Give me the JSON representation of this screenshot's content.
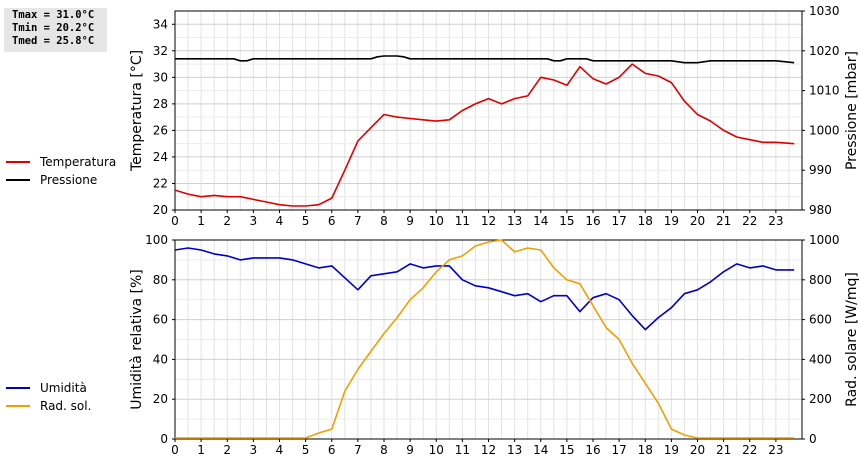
{
  "stats": {
    "tmax": "Tmax = 31.0°C",
    "tmin": "Tmin = 20.2°C",
    "tmed": "Tmed = 25.8°C"
  },
  "legend": {
    "top": [
      {
        "label": "Temperatura",
        "color": "#dd0000"
      },
      {
        "label": "Pressione",
        "color": "#000000"
      }
    ],
    "bottom": [
      {
        "label": "Umidità",
        "color": "#0000cc"
      },
      {
        "label": "Rad. sol.",
        "color": "#f0a000"
      }
    ]
  },
  "chart_data": [
    {
      "type": "line",
      "xticks": [
        "0",
        "1",
        "2",
        "3",
        "4",
        "5",
        "6",
        "7",
        "8",
        "9",
        "10",
        "11",
        "12",
        "13",
        "14",
        "15",
        "16",
        "17",
        "18",
        "19",
        "20",
        "21",
        "22",
        "23"
      ],
      "xlim": [
        0,
        24
      ],
      "ylabel": "Temperatura [°C]",
      "ylim": [
        20,
        35
      ],
      "yticks": [
        "20",
        "22",
        "24",
        "26",
        "28",
        "30",
        "32",
        "34"
      ],
      "y2label": "Pressione [mbar]",
      "y2lim": [
        980,
        1030
      ],
      "y2ticks": [
        "980",
        "990",
        "1000",
        "1010",
        "1020",
        "1030"
      ],
      "grid": true,
      "series": [
        {
          "name": "Temperatura",
          "color": "#dd0000",
          "axis": "left",
          "x": [
            0,
            0.5,
            1,
            1.5,
            2,
            2.5,
            3,
            3.5,
            4,
            4.5,
            5,
            5.5,
            6,
            6.5,
            7,
            7.5,
            8,
            8.5,
            9,
            9.5,
            10,
            10.5,
            11,
            11.5,
            12,
            12.5,
            13,
            13.5,
            14,
            14.5,
            15,
            15.5,
            16,
            16.5,
            17,
            17.5,
            18,
            18.5,
            19,
            19.5,
            20,
            20.5,
            21,
            21.5,
            22,
            22.5,
            23,
            23.7
          ],
          "values": [
            21.5,
            21.2,
            21.0,
            21.1,
            21.0,
            21.0,
            20.8,
            20.6,
            20.4,
            20.3,
            20.3,
            20.4,
            20.9,
            23.0,
            25.2,
            26.2,
            27.2,
            27.0,
            26.9,
            26.8,
            26.7,
            26.8,
            27.5,
            28.0,
            28.4,
            28.0,
            28.4,
            28.6,
            30.0,
            29.8,
            29.4,
            30.8,
            29.9,
            29.5,
            30.0,
            31.0,
            30.3,
            30.1,
            29.6,
            28.2,
            27.2,
            26.7,
            26.0,
            25.5,
            25.3,
            25.1,
            25.1,
            25.0
          ]
        },
        {
          "name": "Pressione",
          "color": "#000000",
          "axis": "right",
          "x": [
            0,
            1,
            2,
            2.25,
            2.5,
            2.75,
            3,
            4,
            5,
            6,
            7,
            7.5,
            7.75,
            8,
            8.25,
            8.5,
            8.75,
            9,
            10,
            11,
            12,
            13,
            14,
            14.25,
            14.5,
            14.75,
            15,
            15.25,
            15.5,
            15.75,
            16,
            17,
            18,
            19,
            19.5,
            20,
            20.5,
            21,
            22,
            23,
            23.7
          ],
          "values": [
            1018,
            1018,
            1018,
            1018,
            1017.5,
            1017.5,
            1018,
            1018,
            1018,
            1018,
            1018,
            1018,
            1018.5,
            1018.7,
            1018.7,
            1018.7,
            1018.5,
            1018,
            1018,
            1018,
            1018,
            1018,
            1018,
            1018,
            1017.5,
            1017.5,
            1018,
            1018,
            1018,
            1018,
            1017.5,
            1017.5,
            1017.5,
            1017.5,
            1017,
            1017,
            1017.5,
            1017.5,
            1017.5,
            1017.5,
            1017
          ]
        }
      ]
    },
    {
      "type": "line",
      "xticks": [
        "0",
        "1",
        "2",
        "3",
        "4",
        "5",
        "6",
        "7",
        "8",
        "9",
        "10",
        "11",
        "12",
        "13",
        "14",
        "15",
        "16",
        "17",
        "18",
        "19",
        "20",
        "21",
        "22",
        "23"
      ],
      "xlim": [
        0,
        24
      ],
      "ylabel": "Umidità relativa [%]",
      "ylim": [
        0,
        100
      ],
      "yticks": [
        "0",
        "20",
        "40",
        "60",
        "80",
        "100"
      ],
      "y2label": "Rad. solare [W/mq]",
      "y2lim": [
        0,
        1000
      ],
      "y2ticks": [
        "0",
        "200",
        "400",
        "600",
        "800",
        "1000"
      ],
      "grid": true,
      "series": [
        {
          "name": "Umidità",
          "color": "#0000cc",
          "axis": "left",
          "x": [
            0,
            0.5,
            1,
            1.5,
            2,
            2.5,
            3,
            3.5,
            4,
            4.5,
            5,
            5.5,
            6,
            6.5,
            7,
            7.5,
            8,
            8.5,
            9,
            9.5,
            10,
            10.5,
            11,
            11.5,
            12,
            12.5,
            13,
            13.5,
            14,
            14.5,
            15,
            15.5,
            16,
            16.5,
            17,
            17.5,
            18,
            18.5,
            19,
            19.5,
            20,
            20.5,
            21,
            21.5,
            22,
            22.5,
            23,
            23.7
          ],
          "values": [
            95,
            96,
            95,
            93,
            92,
            90,
            91,
            91,
            91,
            90,
            88,
            86,
            87,
            81,
            75,
            82,
            83,
            84,
            88,
            86,
            87,
            87,
            80,
            77,
            76,
            74,
            72,
            73,
            69,
            72,
            72,
            64,
            71,
            73,
            70,
            62,
            55,
            61,
            66,
            73,
            75,
            79,
            84,
            88,
            86,
            87,
            85,
            85
          ]
        },
        {
          "name": "Rad. sol.",
          "color": "#f0a000",
          "axis": "right",
          "x": [
            0,
            1,
            2,
            3,
            4,
            5,
            5.5,
            6,
            6.5,
            7,
            7.5,
            8,
            8.5,
            9,
            9.5,
            10,
            10.5,
            11,
            11.5,
            12,
            12.5,
            13,
            13.5,
            14,
            14.5,
            15,
            15.5,
            16,
            16.5,
            17,
            17.5,
            18,
            18.5,
            19,
            19.5,
            20,
            21,
            22,
            23,
            23.7
          ],
          "values": [
            5,
            5,
            5,
            5,
            5,
            5,
            30,
            50,
            240,
            350,
            440,
            530,
            610,
            700,
            760,
            840,
            900,
            920,
            970,
            990,
            1000,
            940,
            960,
            950,
            860,
            800,
            780,
            670,
            560,
            500,
            380,
            280,
            180,
            50,
            20,
            5,
            5,
            5,
            5,
            5
          ]
        }
      ]
    }
  ]
}
